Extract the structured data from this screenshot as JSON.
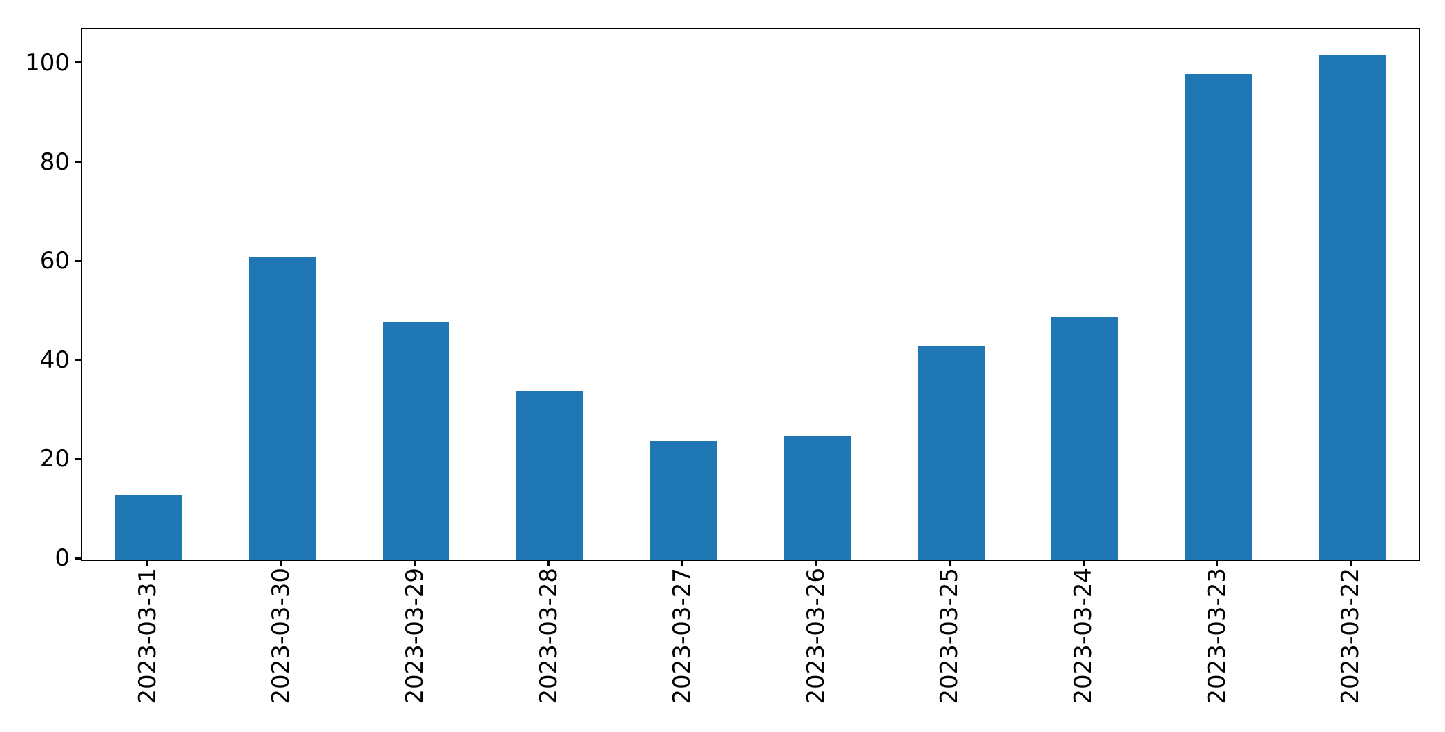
{
  "chart_data": {
    "type": "bar",
    "title": "",
    "xlabel": "",
    "ylabel": "",
    "categories": [
      "2023-03-31",
      "2023-03-30",
      "2023-03-29",
      "2023-03-28",
      "2023-03-27",
      "2023-03-26",
      "2023-03-25",
      "2023-03-24",
      "2023-03-23",
      "2023-03-22"
    ],
    "values": [
      13,
      61,
      48,
      34,
      24,
      25,
      43,
      49,
      98,
      102
    ],
    "series": [
      {
        "name": "",
        "values": [
          13,
          61,
          48,
          34,
          24,
          25,
          43,
          49,
          98,
          102
        ]
      }
    ],
    "yticks": [
      0,
      20,
      40,
      60,
      80,
      100
    ],
    "ytick_labels": [
      "0",
      "20",
      "40",
      "60",
      "80",
      "100"
    ],
    "ylim": [
      0,
      107.1
    ],
    "grid": false,
    "legend": "none",
    "bar_width_ratio": 0.5,
    "colors": {
      "bar": "#1f77b4",
      "axis": "#000000",
      "tick_text": "#000000",
      "background": "#ffffff"
    },
    "x_tick_label_rotation_deg": 90
  }
}
